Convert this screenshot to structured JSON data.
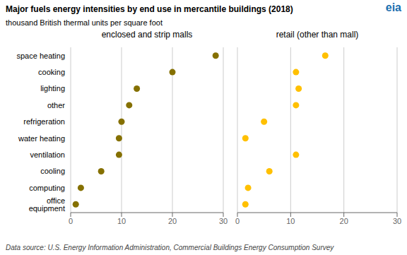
{
  "chart_data": {
    "type": "scatter",
    "title": "Major fuels energy intensities by end use in mercantile buildings (2018)",
    "subtitle": "thousand British thermal units per square foot",
    "annotations": [
      "eia",
      "Data source: U.S. Energy Information Administration, Commercial Buildings Energy Consumption Survey"
    ],
    "categories": [
      "space heating",
      "cooking",
      "lighting",
      "other",
      "refrigeration",
      "water heating",
      "ventilation",
      "cooling",
      "computing",
      "office equipment"
    ],
    "series": [
      {
        "name": "enclosed and strip malls",
        "color": "#857000",
        "values": [
          28.5,
          20.0,
          13.0,
          11.5,
          10.0,
          9.5,
          9.5,
          6.0,
          2.0,
          1.0
        ]
      },
      {
        "name": "retail (other than mall)",
        "color": "#FFC000",
        "values": [
          16.5,
          11.0,
          11.5,
          11.0,
          5.0,
          1.5,
          11.0,
          6.0,
          2.0,
          1.5
        ]
      }
    ],
    "xlim": [
      0,
      30
    ],
    "xticks": [
      0,
      10,
      20,
      30
    ],
    "grid": true
  }
}
